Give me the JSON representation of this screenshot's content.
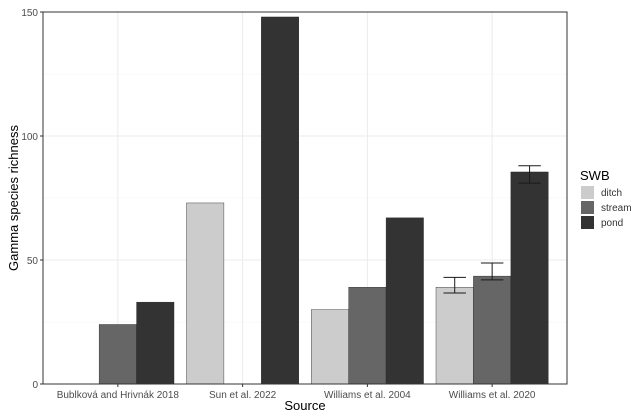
{
  "chart_data": {
    "type": "bar",
    "title": "",
    "xlabel": "Source",
    "ylabel": "Gamma species richness",
    "ylim": [
      0,
      150
    ],
    "yticks": [
      0,
      50,
      100,
      150
    ],
    "grid": true,
    "categories": [
      "Bublková and Hrivnák 2018",
      "Sun et al. 2022",
      "Williams et al. 2004",
      "Williams et al. 2020"
    ],
    "legend": {
      "title": "SWB",
      "placement": "right"
    },
    "series": [
      {
        "name": "ditch",
        "color": "#cccccc",
        "values": [
          null,
          73,
          30,
          39
        ],
        "error": [
          null,
          null,
          null,
          [
            36.7,
            43
          ]
        ]
      },
      {
        "name": "stream",
        "color": "#666666",
        "values": [
          24,
          null,
          39,
          43.5
        ],
        "error": [
          null,
          null,
          null,
          [
            42,
            48.8
          ]
        ]
      },
      {
        "name": "pond",
        "color": "#333333",
        "values": [
          33,
          148,
          67,
          85.5
        ],
        "error": [
          null,
          null,
          null,
          [
            81,
            88
          ]
        ]
      }
    ]
  }
}
